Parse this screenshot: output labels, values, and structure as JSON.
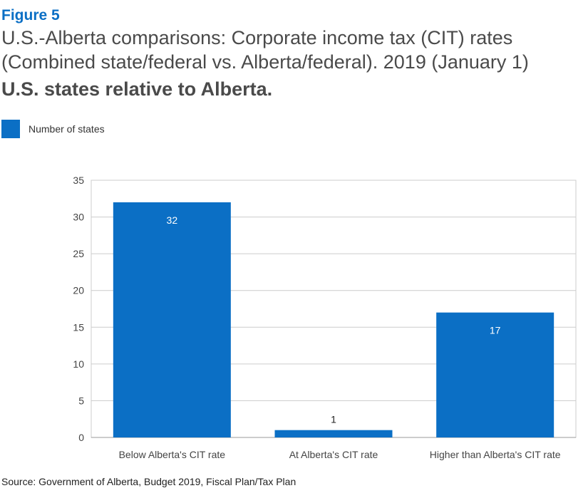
{
  "figure_label": "Figure 5",
  "title": "U.S.-Alberta comparisons: Corporate income tax (CIT) rates (Combined state/federal vs. Alberta/federal). 2019 (January 1)",
  "subtitle": "U.S. states relative to Alberta.",
  "source": "Source: Government of Alberta, Budget 2019, Fiscal Plan/Tax Plan",
  "colors": {
    "bar": "#0b6fc5",
    "grid": "#cccccc",
    "axis": "#999999"
  },
  "chart_data": {
    "type": "bar",
    "categories": [
      "Below Alberta's CIT rate",
      "At Alberta's CIT rate",
      "Higher than Alberta's CIT rate"
    ],
    "series": [
      {
        "name": "Number of states",
        "values": [
          32,
          1,
          17
        ]
      }
    ],
    "ylim": [
      0,
      35
    ],
    "yticks": [
      0,
      5,
      10,
      15,
      20,
      25,
      30,
      35
    ],
    "legend": "top-left",
    "grid": true
  }
}
